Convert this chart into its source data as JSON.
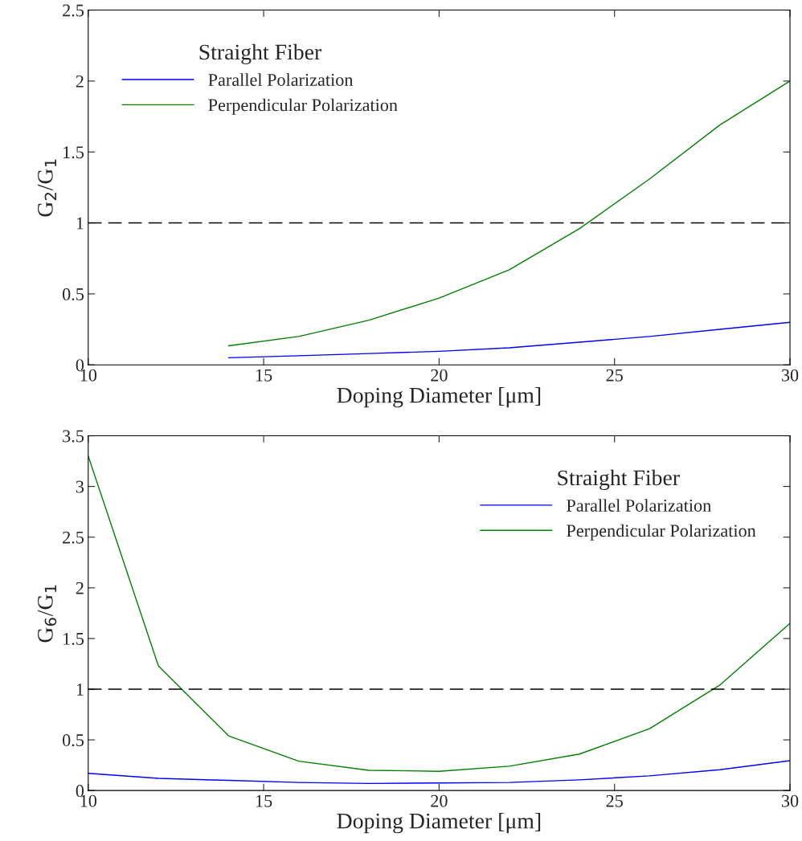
{
  "chart_data": [
    {
      "type": "line",
      "legend_title": "Straight Fiber",
      "xlabel": "Doping Diameter [μm]",
      "ylabel": "G$_{2}$/G$_{1}$",
      "legend": "top left",
      "grid": false,
      "xlim": [
        10,
        30
      ],
      "xticks": [
        10,
        15,
        20,
        25,
        30
      ],
      "ylim": [
        0,
        2.5
      ],
      "yticks": [
        0,
        0.5,
        1,
        1.5,
        2,
        2.5
      ],
      "x": [
        14,
        16,
        18,
        20,
        22,
        24,
        26,
        28,
        30
      ],
      "series": [
        {
          "name": "Parallel Polarization",
          "color": "#0000ff",
          "values": [
            0.05,
            0.064,
            0.08,
            0.095,
            0.12,
            0.16,
            0.2,
            0.25,
            0.3
          ]
        },
        {
          "name": "Perpendicular Polarization",
          "color": "#008000",
          "values": [
            0.134,
            0.2,
            0.315,
            0.47,
            0.67,
            0.96,
            1.31,
            1.69,
            2.0
          ]
        }
      ],
      "ref_lines": [
        {
          "axis": "y",
          "value": 1,
          "color": "#000000",
          "line_style": "dashed"
        }
      ]
    },
    {
      "type": "line",
      "legend_title": "Straight Fiber",
      "xlabel": "Doping Diameter [μm]",
      "ylabel": "G$_{6}$/G$_{1}$",
      "legend": "top right",
      "grid": false,
      "xlim": [
        10,
        30
      ],
      "xticks": [
        10,
        15,
        20,
        25,
        30
      ],
      "ylim": [
        0,
        3.5
      ],
      "yticks": [
        0,
        0.5,
        1,
        1.5,
        2,
        2.5,
        3,
        3.5
      ],
      "x": [
        10,
        12,
        14,
        16,
        18,
        20,
        22,
        24,
        26,
        28,
        30
      ],
      "series": [
        {
          "name": "Parallel Polarization",
          "color": "#0000ff",
          "values": [
            0.17,
            0.12,
            0.1,
            0.08,
            0.07,
            0.075,
            0.08,
            0.105,
            0.145,
            0.205,
            0.295
          ]
        },
        {
          "name": "Perpendicular Polarization",
          "color": "#008000",
          "values": [
            3.3,
            1.23,
            0.54,
            0.29,
            0.2,
            0.19,
            0.24,
            0.36,
            0.61,
            1.04,
            1.65
          ]
        }
      ],
      "ref_lines": [
        {
          "axis": "y",
          "value": 1,
          "color": "#000000",
          "line_style": "dashed"
        }
      ]
    }
  ]
}
